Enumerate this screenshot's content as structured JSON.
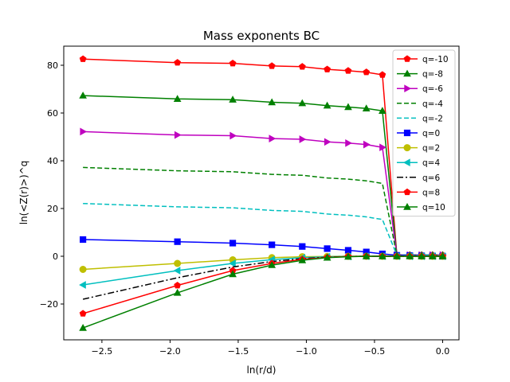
{
  "chart_data": {
    "type": "line",
    "title": "Mass exponents BC",
    "xlabel": "ln(r/d)",
    "ylabel": "ln(<Z(r)>)^q",
    "xlim": [
      -2.78,
      0.12
    ],
    "ylim": [
      -35,
      88
    ],
    "xticks": [
      -2.5,
      -2.0,
      -1.5,
      -1.0,
      -0.5,
      0.0
    ],
    "xtick_labels": [
      "−2.5",
      "−2.0",
      "−1.5",
      "−1.0",
      "−0.5",
      "0.0"
    ],
    "yticks": [
      -20,
      0,
      20,
      40,
      60,
      80
    ],
    "ytick_labels": [
      "−20",
      "0",
      "20",
      "40",
      "60",
      "80"
    ],
    "grid": false,
    "legend_position": "top-right",
    "x": [
      -2.639,
      -1.946,
      -1.54,
      -1.253,
      -1.03,
      -0.847,
      -0.693,
      -0.56,
      -0.442,
      -0.336,
      -0.241,
      -0.154,
      -0.074,
      0.0
    ],
    "series": [
      {
        "name": "q=-10",
        "color": "#ff0000",
        "linestyle": "solid",
        "marker": "pentagon",
        "values": [
          82.6,
          81.1,
          80.8,
          79.7,
          79.4,
          78.3,
          77.7,
          77.1,
          76.0,
          0.5,
          0.5,
          0.5,
          0.5,
          0.5
        ]
      },
      {
        "name": "q=-8",
        "color": "#008000",
        "linestyle": "solid",
        "marker": "triangle-up",
        "values": [
          67.3,
          65.9,
          65.6,
          64.5,
          64.1,
          63.1,
          62.5,
          61.9,
          60.9,
          0.5,
          0.5,
          0.5,
          0.5,
          0.5
        ]
      },
      {
        "name": "q=-6",
        "color": "#bf00bf",
        "linestyle": "solid",
        "marker": "triangle-right",
        "values": [
          52.2,
          50.8,
          50.5,
          49.3,
          49.0,
          47.9,
          47.4,
          46.8,
          45.6,
          0.5,
          0.5,
          0.5,
          0.5,
          0.5
        ]
      },
      {
        "name": "q=-4",
        "color": "#008000",
        "linestyle": "dashed",
        "marker": "none",
        "values": [
          37.2,
          35.8,
          35.4,
          34.3,
          33.9,
          32.8,
          32.3,
          31.6,
          30.5,
          0.5,
          0.5,
          0.5,
          0.5,
          0.5
        ]
      },
      {
        "name": "q=-2",
        "color": "#00bfbf",
        "linestyle": "dashed",
        "marker": "none",
        "values": [
          22.1,
          20.7,
          20.3,
          19.2,
          18.8,
          17.7,
          17.2,
          16.5,
          15.4,
          0.5,
          0.5,
          0.5,
          0.5,
          0.5
        ]
      },
      {
        "name": "q=0",
        "color": "#0000ff",
        "linestyle": "solid",
        "marker": "square",
        "values": [
          7.0,
          6.1,
          5.5,
          4.8,
          4.1,
          3.2,
          2.5,
          1.8,
          1.0,
          0.4,
          0.3,
          0.2,
          0.1,
          0.0
        ]
      },
      {
        "name": "q=2",
        "color": "#bfbf00",
        "linestyle": "solid",
        "marker": "circle",
        "values": [
          -5.5,
          -3.0,
          -1.5,
          -0.6,
          -0.2,
          -0.1,
          0.0,
          0.0,
          0.0,
          0.0,
          0.0,
          0.0,
          0.0,
          0.0
        ]
      },
      {
        "name": "q=4",
        "color": "#00bfbf",
        "linestyle": "solid",
        "marker": "triangle-left",
        "values": [
          -12.0,
          -6.0,
          -3.0,
          -1.4,
          -0.6,
          -0.2,
          -0.1,
          0.0,
          0.0,
          0.0,
          0.0,
          0.0,
          0.0,
          0.0
        ]
      },
      {
        "name": "q=6",
        "color": "#000000",
        "linestyle": "dashdot",
        "marker": "none",
        "values": [
          -18.0,
          -9.0,
          -4.5,
          -2.2,
          -1.0,
          -0.4,
          -0.1,
          0.0,
          0.0,
          0.0,
          0.0,
          0.0,
          0.0,
          0.0
        ]
      },
      {
        "name": "q=8",
        "color": "#ff0000",
        "linestyle": "solid",
        "marker": "pentagon",
        "values": [
          -24.0,
          -12.2,
          -6.0,
          -3.0,
          -1.3,
          -0.5,
          -0.1,
          0.0,
          0.0,
          0.0,
          0.0,
          0.0,
          0.0,
          0.0
        ]
      },
      {
        "name": "q=10",
        "color": "#008000",
        "linestyle": "solid",
        "marker": "triangle-up",
        "values": [
          -30.0,
          -15.3,
          -7.5,
          -3.7,
          -1.7,
          -0.6,
          -0.2,
          0.0,
          0.0,
          0.0,
          0.0,
          0.0,
          0.0,
          0.0
        ]
      }
    ]
  }
}
